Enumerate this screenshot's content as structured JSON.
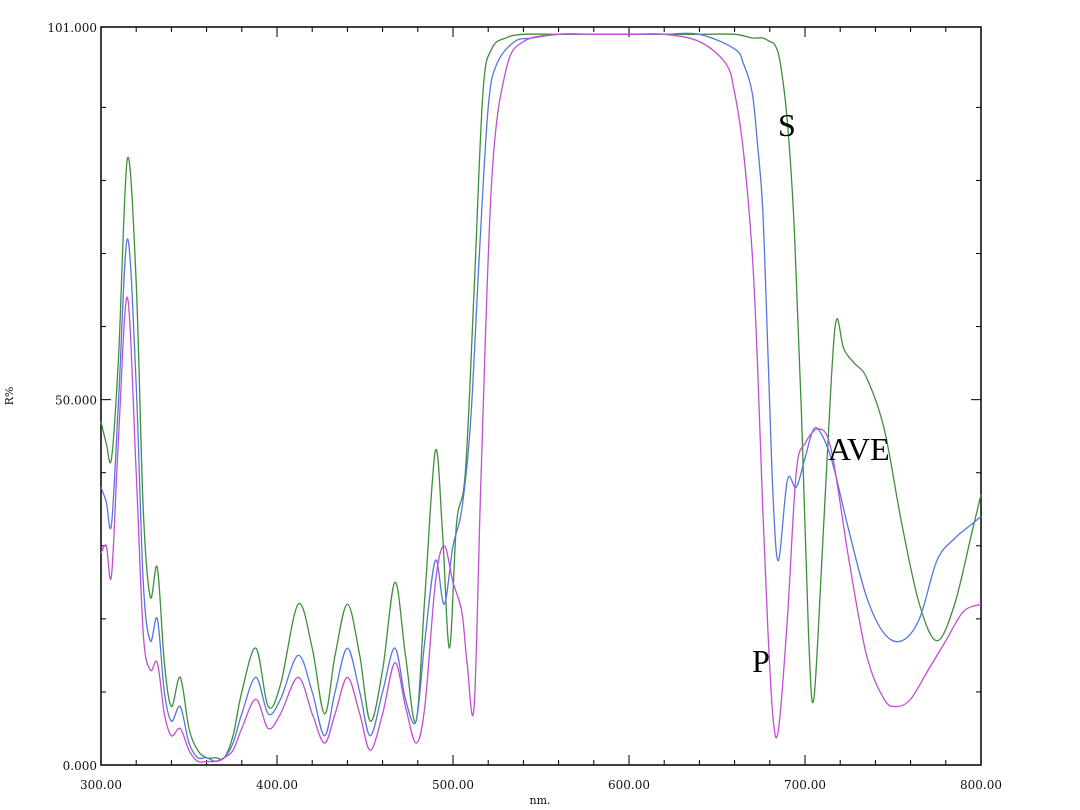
{
  "chart_data": {
    "type": "line",
    "title": "",
    "xlabel": "nm.",
    "ylabel": "R%",
    "xlim": [
      300,
      800
    ],
    "ylim": [
      0,
      101
    ],
    "x_ticks": [
      300,
      400,
      500,
      600,
      700,
      800
    ],
    "x_tick_labels": [
      "300.00",
      "400.00",
      "500.00",
      "600.00",
      "700.00",
      "800.00"
    ],
    "y_ticks": [
      0,
      50,
      101
    ],
    "y_tick_labels": [
      "0.000",
      "50.000",
      "101.000"
    ],
    "grid": false,
    "series": [
      {
        "name": "S",
        "color": "#3f8f3a",
        "x": [
          300,
          303,
          306,
          310,
          315,
          320,
          324,
          328,
          332,
          336,
          340,
          345,
          350,
          355,
          360,
          365,
          370,
          375,
          380,
          388,
          395,
          402,
          412,
          420,
          427,
          433,
          440,
          447,
          453,
          460,
          467,
          473,
          479,
          484,
          490,
          494,
          498,
          502,
          507,
          512,
          517,
          522,
          530,
          540,
          560,
          580,
          600,
          620,
          640,
          660,
          670,
          676,
          680,
          683,
          686,
          690,
          694,
          698,
          702,
          705,
          710,
          715,
          718,
          722,
          728,
          735,
          745,
          755,
          765,
          775,
          785,
          795,
          800
        ],
        "y": [
          47,
          44,
          42,
          56,
          83,
          66,
          35,
          23,
          27,
          14,
          8,
          12,
          5,
          2,
          1,
          1,
          1,
          4,
          10,
          16,
          8,
          11,
          22,
          16,
          7,
          15,
          22,
          15,
          6,
          13,
          25,
          15,
          6,
          23,
          43,
          32,
          16,
          33,
          40,
          65,
          92,
          98,
          99.5,
          100,
          100,
          100,
          100,
          100,
          100,
          100,
          99.5,
          99.5,
          99,
          98.5,
          96,
          88,
          73,
          48,
          18,
          9,
          30,
          53,
          61,
          57,
          55,
          53,
          46,
          33,
          22,
          17,
          22,
          32,
          37
        ]
      },
      {
        "name": "AVE",
        "color": "#5577dd",
        "x": [
          300,
          303,
          306,
          310,
          315,
          320,
          324,
          328,
          332,
          336,
          340,
          345,
          350,
          355,
          360,
          365,
          370,
          375,
          380,
          388,
          395,
          402,
          412,
          420,
          427,
          433,
          440,
          447,
          453,
          460,
          467,
          473,
          479,
          484,
          490,
          495,
          500,
          505,
          510,
          515,
          520,
          525,
          535,
          545,
          560,
          580,
          600,
          620,
          640,
          660,
          665,
          670,
          673,
          676,
          679,
          682,
          685,
          690,
          695,
          700,
          705,
          710,
          716,
          725,
          735,
          745,
          755,
          765,
          775,
          785,
          795,
          800
        ],
        "y": [
          38,
          36,
          33,
          50,
          72,
          52,
          25,
          17,
          20,
          10,
          6,
          8,
          3,
          1,
          1,
          0.5,
          1,
          3,
          7,
          12,
          7,
          9,
          15,
          10,
          4,
          10,
          16,
          10,
          4,
          10,
          16,
          9,
          6,
          17,
          28,
          22,
          30,
          35,
          47,
          70,
          90,
          96,
          99,
          99.5,
          100,
          100,
          100,
          100,
          100,
          98,
          96,
          92,
          85,
          76,
          56,
          36,
          28,
          39,
          38,
          42,
          46,
          45,
          41,
          32,
          23,
          18,
          17,
          20,
          28,
          31,
          33,
          34
        ]
      },
      {
        "name": "P",
        "color": "#c04fd2",
        "x": [
          300,
          303,
          306,
          310,
          315,
          320,
          324,
          328,
          332,
          336,
          340,
          345,
          350,
          355,
          360,
          365,
          370,
          375,
          380,
          388,
          395,
          402,
          412,
          420,
          427,
          433,
          440,
          447,
          453,
          460,
          467,
          473,
          479,
          484,
          490,
          495,
          500,
          505,
          508,
          512,
          516,
          522,
          530,
          540,
          560,
          580,
          600,
          620,
          640,
          655,
          660,
          665,
          670,
          673,
          676,
          679,
          682,
          685,
          690,
          695,
          700,
          708,
          715,
          725,
          735,
          745,
          752,
          760,
          770,
          780,
          790,
          800
        ],
        "y": [
          29,
          30,
          26,
          45,
          64,
          40,
          18,
          13,
          14,
          7,
          4,
          5,
          2,
          0.5,
          0.5,
          0.5,
          1,
          2,
          5,
          9,
          5,
          7,
          12,
          7,
          3,
          7,
          12,
          7,
          2,
          7,
          14,
          8,
          3,
          8,
          25,
          30,
          25,
          21,
          14,
          8,
          40,
          80,
          95,
          99,
          100,
          100,
          100,
          100,
          99,
          96,
          92,
          84,
          70,
          55,
          35,
          18,
          6,
          5,
          20,
          40,
          44,
          46,
          43,
          28,
          15,
          9,
          8,
          9,
          13,
          17,
          21,
          22
        ]
      }
    ]
  },
  "labels": {
    "s": "S",
    "ave": "AVE",
    "p": "P"
  }
}
